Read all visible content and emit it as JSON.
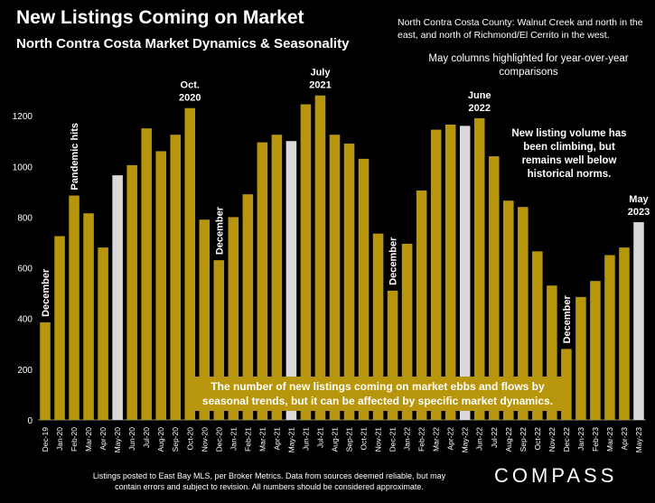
{
  "title": "New Listings Coming on Market",
  "subtitle": "North Contra Costa Market Dynamics & Seasonality",
  "region_note": "North Contra Costa County: Walnut Creek and north in the east, and north of Richmond/El Cerrito in the west.",
  "highlight_note": "May columns highlighted for year-over-year comparisons",
  "volume_note": "New listing volume has been climbing, but remains well below historical norms.",
  "info_box": "The number of new listings coming on market ebbs and flows by seasonal trends, but it can be affected by specific market dynamics.",
  "footnote": "Listings posted to East Bay MLS, per Broker Metrics. Data from sources deemed reliable, but may contain errors and subject to revision. All numbers should be considered approximate.",
  "logo": "COMPASS",
  "colors": {
    "bar": "#b8960c",
    "highlight": "#d9d9d9",
    "background": "#000000"
  },
  "chart_data": {
    "type": "bar",
    "ylim": [
      0,
      1400
    ],
    "yticks": [
      0,
      200,
      400,
      600,
      800,
      1000,
      1200
    ],
    "categories": [
      "Dec-19",
      "Jan-20",
      "Feb-20",
      "Mar-20",
      "Apr-20",
      "May-20",
      "Jun-20",
      "Jul-20",
      "Aug-20",
      "Sep-20",
      "Oct-20",
      "Nov-20",
      "Dec-20",
      "Jan-21",
      "Feb-21",
      "Mar-21",
      "Apr-21",
      "May-21",
      "Jun-21",
      "Jul-21",
      "Aug-21",
      "Sep-21",
      "Oct-21",
      "Nov-21",
      "Dec-21",
      "Jan-22",
      "Feb-22",
      "Mar-22",
      "Apr-22",
      "May-22",
      "Jun-22",
      "Jul-22",
      "Aug-22",
      "Sep-22",
      "Oct-22",
      "Nov-22",
      "Dec-22",
      "Jan-23",
      "Feb-23",
      "Mar-23",
      "Apr-23",
      "May-23"
    ],
    "values": [
      385,
      725,
      885,
      815,
      680,
      965,
      1005,
      1150,
      1060,
      1125,
      1230,
      790,
      630,
      800,
      890,
      1095,
      1125,
      1100,
      1245,
      1280,
      1125,
      1090,
      1030,
      735,
      510,
      695,
      905,
      1145,
      1165,
      1160,
      1190,
      1040,
      865,
      840,
      665,
      530,
      280,
      485,
      548,
      650,
      680,
      780
    ],
    "highlighted": [
      "May-20",
      "May-21",
      "May-22",
      "May-23"
    ],
    "annotations": [
      {
        "category": "Dec-19",
        "text": "December",
        "rotated": true
      },
      {
        "category": "Feb-20",
        "text": "Pandemic hits",
        "rotated": true
      },
      {
        "category": "Oct-20",
        "text": "Oct. 2020",
        "rotated": false
      },
      {
        "category": "Dec-20",
        "text": "December",
        "rotated": true
      },
      {
        "category": "Jul-21",
        "text": "July 2021",
        "rotated": false
      },
      {
        "category": "Dec-21",
        "text": "December",
        "rotated": true
      },
      {
        "category": "Jun-22",
        "text": "June 2022",
        "rotated": false
      },
      {
        "category": "Dec-22",
        "text": "December",
        "rotated": true
      },
      {
        "category": "May-23",
        "text": "May 2023",
        "rotated": false
      }
    ]
  }
}
